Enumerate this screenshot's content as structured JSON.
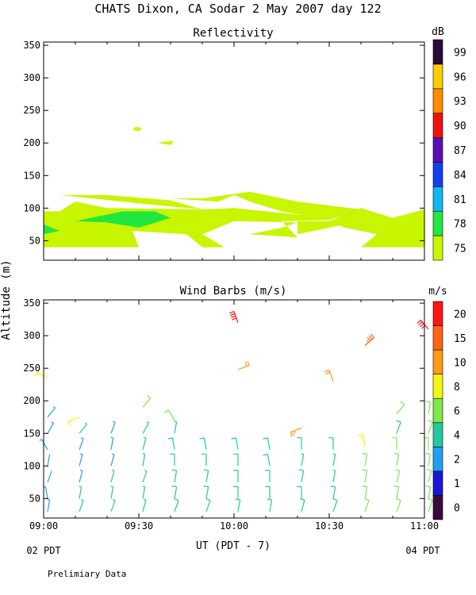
{
  "chart_data": [
    {
      "type": "heatmap",
      "title": "CHATS Dixon, CA  Sodar   2 May 2007  day 122",
      "subtitle": "Reflectivity",
      "ylabel": "",
      "ylim": [
        20,
        355
      ],
      "yticks": [
        50,
        100,
        150,
        200,
        250,
        300,
        350
      ],
      "xlim_minutes": [
        0,
        120
      ],
      "xticks": [
        "09:00",
        "09:30",
        "10:00",
        "10:30",
        "11:00"
      ],
      "colorbar": {
        "unit": "dB",
        "levels": [
          "75",
          "78",
          "81",
          "84",
          "87",
          "90",
          "93",
          "96",
          "99"
        ],
        "colors": [
          "#c8f500",
          "#22e640",
          "#12b5f0",
          "#1240f0",
          "#5a0fb4",
          "#f01010",
          "#ff8c00",
          "#ffcc00",
          "#2a0a3a"
        ]
      },
      "regions": [
        {
          "level": "75",
          "points": [
            [
              0,
              40
            ],
            [
              30,
              40
            ],
            [
              28,
              65
            ],
            [
              45,
              60
            ],
            [
              50,
              40
            ],
            [
              57,
              40
            ],
            [
              50,
              60
            ],
            [
              60,
              80
            ],
            [
              80,
              78
            ],
            [
              75,
              70
            ],
            [
              65,
              60
            ],
            [
              80,
              55
            ],
            [
              75,
              80
            ],
            [
              90,
              82
            ],
            [
              100,
              98
            ],
            [
              95,
              85
            ],
            [
              80,
              90
            ],
            [
              60,
              100
            ],
            [
              50,
              98
            ],
            [
              20,
              100
            ],
            [
              10,
              110
            ],
            [
              5,
              95
            ],
            [
              0,
              95
            ]
          ]
        },
        {
          "level": "75",
          "points": [
            [
              5,
              120
            ],
            [
              20,
              120
            ],
            [
              40,
              112
            ],
            [
              50,
              98
            ],
            [
              35,
              105
            ],
            [
              25,
              110
            ]
          ]
        },
        {
          "level": "75",
          "points": [
            [
              40,
              115
            ],
            [
              55,
              110
            ],
            [
              60,
              120
            ],
            [
              65,
              110
            ],
            [
              75,
              95
            ],
            [
              90,
              82
            ],
            [
              100,
              98
            ],
            [
              80,
              110
            ],
            [
              65,
              125
            ],
            [
              50,
              115
            ]
          ]
        },
        {
          "level": "75",
          "points": [
            [
              100,
              80
            ],
            [
              80,
              60
            ],
            [
              80,
              80
            ]
          ]
        },
        {
          "level": "75",
          "points": [
            [
              90,
              80
            ],
            [
              100,
              100
            ],
            [
              110,
              85
            ],
            [
              120,
              98
            ],
            [
              120,
              40
            ],
            [
              100,
              40
            ],
            [
              105,
              60
            ],
            [
              95,
              70
            ]
          ]
        },
        {
          "level": "75",
          "points": [
            [
              28,
              220
            ],
            [
              30,
              218
            ],
            [
              31,
              223
            ],
            [
              29,
              225
            ]
          ]
        },
        {
          "level": "75",
          "points": [
            [
              36,
              200
            ],
            [
              40,
              197
            ],
            [
              41,
              203
            ],
            [
              38,
              202
            ]
          ]
        },
        {
          "level": "78",
          "points": [
            [
              10,
              80
            ],
            [
              25,
              95
            ],
            [
              35,
              95
            ],
            [
              40,
              85
            ],
            [
              30,
              70
            ],
            [
              20,
              78
            ]
          ]
        },
        {
          "level": "78",
          "points": [
            [
              0,
              75
            ],
            [
              5,
              65
            ],
            [
              0,
              60
            ]
          ]
        }
      ]
    },
    {
      "type": "scatter",
      "subtitle": "Wind Barbs (m/s)",
      "ylabel": "Altitude (m)",
      "xlabel": "UT  (PDT - 7)",
      "ylim": [
        20,
        355
      ],
      "yticks": [
        50,
        100,
        150,
        200,
        250,
        300,
        350
      ],
      "xlim_minutes": [
        0,
        120
      ],
      "xticks": [
        "09:00",
        "09:30",
        "10:00",
        "10:30",
        "11:00"
      ],
      "x_sublabel_left": "02 PDT",
      "x_sublabel_right": "04 PDT",
      "colorbar": {
        "unit": "m/s",
        "labels": [
          "0",
          "1",
          "2",
          "4",
          "6",
          "8",
          "10",
          "15",
          "20"
        ],
        "colors": [
          "#3a0a3a",
          "#1a16d8",
          "#20a0f0",
          "#22c8a0",
          "#7ee84a",
          "#f5f514",
          "#ff9a14",
          "#ff6414",
          "#ff1414"
        ]
      },
      "barbs": [
        {
          "t": 0,
          "alt": 30,
          "dir": 10,
          "speed": 3
        },
        {
          "t": 0,
          "alt": 50,
          "dir": 350,
          "speed": 3
        },
        {
          "t": 0,
          "alt": 75,
          "dir": 20,
          "speed": 2
        },
        {
          "t": 0,
          "alt": 100,
          "dir": 10,
          "speed": 2
        },
        {
          "t": 0,
          "alt": 125,
          "dir": 330,
          "speed": 3
        },
        {
          "t": 0,
          "alt": 150,
          "dir": 30,
          "speed": 3
        },
        {
          "t": 0,
          "alt": 175,
          "dir": 40,
          "speed": 3
        },
        {
          "t": 0,
          "alt": 235,
          "dir": 300,
          "speed": 9
        },
        {
          "t": 10,
          "alt": 30,
          "dir": 20,
          "speed": 4
        },
        {
          "t": 10,
          "alt": 50,
          "dir": 10,
          "speed": 4
        },
        {
          "t": 10,
          "alt": 75,
          "dir": 15,
          "speed": 3
        },
        {
          "t": 10,
          "alt": 100,
          "dir": 15,
          "speed": 3
        },
        {
          "t": 10,
          "alt": 125,
          "dir": 20,
          "speed": 3
        },
        {
          "t": 10,
          "alt": 150,
          "dir": 40,
          "speed": 4
        },
        {
          "t": 10,
          "alt": 175,
          "dir": 250,
          "speed": 8
        },
        {
          "t": 20,
          "alt": 30,
          "dir": 20,
          "speed": 4
        },
        {
          "t": 20,
          "alt": 50,
          "dir": 10,
          "speed": 4
        },
        {
          "t": 20,
          "alt": 75,
          "dir": 15,
          "speed": 4
        },
        {
          "t": 20,
          "alt": 100,
          "dir": 15,
          "speed": 3
        },
        {
          "t": 20,
          "alt": 125,
          "dir": 10,
          "speed": 3
        },
        {
          "t": 20,
          "alt": 150,
          "dir": 20,
          "speed": 3
        },
        {
          "t": 30,
          "alt": 30,
          "dir": 15,
          "speed": 4
        },
        {
          "t": 30,
          "alt": 50,
          "dir": 10,
          "speed": 4
        },
        {
          "t": 30,
          "alt": 75,
          "dir": 20,
          "speed": 4
        },
        {
          "t": 30,
          "alt": 100,
          "dir": 10,
          "speed": 4
        },
        {
          "t": 30,
          "alt": 125,
          "dir": 15,
          "speed": 4
        },
        {
          "t": 30,
          "alt": 150,
          "dir": 30,
          "speed": 4
        },
        {
          "t": 30,
          "alt": 190,
          "dir": 40,
          "speed": 7
        },
        {
          "t": 40,
          "alt": 30,
          "dir": 20,
          "speed": 5
        },
        {
          "t": 40,
          "alt": 50,
          "dir": 10,
          "speed": 5
        },
        {
          "t": 40,
          "alt": 75,
          "dir": 10,
          "speed": 5
        },
        {
          "t": 40,
          "alt": 100,
          "dir": 0,
          "speed": 5
        },
        {
          "t": 40,
          "alt": 125,
          "dir": 350,
          "speed": 5
        },
        {
          "t": 40,
          "alt": 150,
          "dir": 10,
          "speed": 4
        },
        {
          "t": 40,
          "alt": 170,
          "dir": 330,
          "speed": 6
        },
        {
          "t": 50,
          "alt": 30,
          "dir": 20,
          "speed": 5
        },
        {
          "t": 50,
          "alt": 50,
          "dir": 10,
          "speed": 5
        },
        {
          "t": 50,
          "alt": 75,
          "dir": 10,
          "speed": 5
        },
        {
          "t": 50,
          "alt": 100,
          "dir": 0,
          "speed": 5
        },
        {
          "t": 50,
          "alt": 125,
          "dir": 350,
          "speed": 5
        },
        {
          "t": 60,
          "alt": 30,
          "dir": 10,
          "speed": 5
        },
        {
          "t": 60,
          "alt": 50,
          "dir": 0,
          "speed": 5
        },
        {
          "t": 60,
          "alt": 75,
          "dir": 0,
          "speed": 5
        },
        {
          "t": 60,
          "alt": 100,
          "dir": 0,
          "speed": 5
        },
        {
          "t": 60,
          "alt": 125,
          "dir": 350,
          "speed": 5
        },
        {
          "t": 60,
          "alt": 248,
          "dir": 70,
          "speed": 12
        },
        {
          "t": 60,
          "alt": 320,
          "dir": 340,
          "speed": 22
        },
        {
          "t": 70,
          "alt": 30,
          "dir": 10,
          "speed": 5
        },
        {
          "t": 70,
          "alt": 50,
          "dir": 0,
          "speed": 5
        },
        {
          "t": 70,
          "alt": 75,
          "dir": 0,
          "speed": 5
        },
        {
          "t": 70,
          "alt": 100,
          "dir": 350,
          "speed": 5
        },
        {
          "t": 70,
          "alt": 125,
          "dir": 350,
          "speed": 5
        },
        {
          "t": 80,
          "alt": 30,
          "dir": 15,
          "speed": 5
        },
        {
          "t": 80,
          "alt": 50,
          "dir": 0,
          "speed": 5
        },
        {
          "t": 80,
          "alt": 75,
          "dir": 10,
          "speed": 5
        },
        {
          "t": 80,
          "alt": 100,
          "dir": 10,
          "speed": 4
        },
        {
          "t": 80,
          "alt": 125,
          "dir": 0,
          "speed": 5
        },
        {
          "t": 80,
          "alt": 158,
          "dir": 250,
          "speed": 14
        },
        {
          "t": 90,
          "alt": 30,
          "dir": 20,
          "speed": 5
        },
        {
          "t": 90,
          "alt": 50,
          "dir": 10,
          "speed": 5
        },
        {
          "t": 90,
          "alt": 75,
          "dir": 10,
          "speed": 4
        },
        {
          "t": 90,
          "alt": 100,
          "dir": 10,
          "speed": 4
        },
        {
          "t": 90,
          "alt": 125,
          "dir": 0,
          "speed": 5
        },
        {
          "t": 90,
          "alt": 230,
          "dir": 340,
          "speed": 12
        },
        {
          "t": 100,
          "alt": 30,
          "dir": 20,
          "speed": 7
        },
        {
          "t": 100,
          "alt": 50,
          "dir": 10,
          "speed": 7
        },
        {
          "t": 100,
          "alt": 75,
          "dir": 10,
          "speed": 7
        },
        {
          "t": 100,
          "alt": 100,
          "dir": 10,
          "speed": 6
        },
        {
          "t": 100,
          "alt": 130,
          "dir": 350,
          "speed": 8
        },
        {
          "t": 100,
          "alt": 285,
          "dir": 50,
          "speed": 18
        },
        {
          "t": 110,
          "alt": 30,
          "dir": 20,
          "speed": 6
        },
        {
          "t": 110,
          "alt": 50,
          "dir": 10,
          "speed": 6
        },
        {
          "t": 110,
          "alt": 75,
          "dir": 15,
          "speed": 6
        },
        {
          "t": 110,
          "alt": 100,
          "dir": 10,
          "speed": 6
        },
        {
          "t": 110,
          "alt": 125,
          "dir": 0,
          "speed": 6
        },
        {
          "t": 110,
          "alt": 150,
          "dir": 20,
          "speed": 5
        },
        {
          "t": 110,
          "alt": 180,
          "dir": 40,
          "speed": 6
        },
        {
          "t": 120,
          "alt": 30,
          "dir": 20,
          "speed": 6
        },
        {
          "t": 120,
          "alt": 50,
          "dir": 10,
          "speed": 6
        },
        {
          "t": 120,
          "alt": 75,
          "dir": 15,
          "speed": 6
        },
        {
          "t": 120,
          "alt": 100,
          "dir": 10,
          "speed": 6
        },
        {
          "t": 120,
          "alt": 125,
          "dir": 0,
          "speed": 6
        },
        {
          "t": 120,
          "alt": 150,
          "dir": 20,
          "speed": 6
        },
        {
          "t": 120,
          "alt": 180,
          "dir": 10,
          "speed": 7
        },
        {
          "t": 120,
          "alt": 310,
          "dir": 320,
          "speed": 20
        }
      ]
    }
  ],
  "footer_note": "Prelimiary Data"
}
